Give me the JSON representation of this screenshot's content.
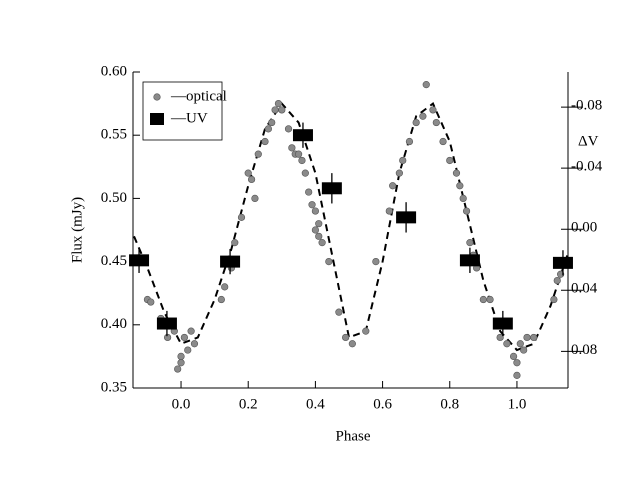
{
  "chart_data": {
    "type": "scatter",
    "xlabel": "Phase",
    "ylabel": "Flux (mJy)",
    "y2label": "ΔV",
    "xlim": [
      -0.143,
      1.152
    ],
    "ylim": [
      0.35,
      0.6
    ],
    "y2lim": [
      0.104,
      -0.103
    ],
    "xticks": [
      {
        "value": 0,
        "label": "0.0"
      },
      0.2,
      0.4,
      0.6,
      0.8,
      {
        "value": 1,
        "label": "1.0"
      }
    ],
    "yticks": [
      0.35,
      {
        "value": 0.4,
        "label": "0.40"
      },
      0.45,
      {
        "value": 0.5,
        "label": "0.50"
      },
      0.55,
      {
        "value": 0.6,
        "label": "0.60"
      }
    ],
    "y2ticks": [
      -0.08,
      -0.04,
      {
        "value": 0,
        "label": "0.00"
      },
      0.04,
      0.08
    ],
    "legend": "upper left",
    "series": [
      {
        "name": "—optical",
        "marker": "circle",
        "color": "#8a8a8a",
        "x": [
          -0.1,
          -0.09,
          -0.06,
          -0.04,
          -0.02,
          0.0,
          0.0,
          -0.01,
          0.02,
          0.03,
          0.01,
          0.04,
          0.12,
          0.13,
          0.15,
          0.16,
          0.18,
          0.2,
          0.21,
          0.22,
          0.23,
          0.25,
          0.26,
          0.27,
          0.28,
          0.29,
          0.3,
          0.32,
          0.33,
          0.34,
          0.35,
          0.36,
          0.37,
          0.38,
          0.39,
          0.4,
          0.41,
          0.4,
          0.41,
          0.42,
          0.44,
          0.47,
          0.49,
          0.51,
          0.55,
          0.58,
          0.62,
          0.63,
          0.65,
          0.66,
          0.68,
          0.7,
          0.72,
          0.73,
          0.75,
          0.76,
          0.78,
          0.8,
          0.82,
          0.83,
          0.84,
          0.85,
          0.86,
          0.87,
          0.88,
          0.9,
          0.92,
          0.94,
          0.95,
          0.97,
          0.99,
          1.0,
          1.0,
          1.01,
          1.02,
          1.03,
          1.05,
          1.11,
          1.12,
          1.13
        ],
        "values": [
          0.42,
          0.418,
          0.405,
          0.39,
          0.395,
          0.375,
          0.37,
          0.365,
          0.38,
          0.395,
          0.39,
          0.385,
          0.42,
          0.43,
          0.445,
          0.465,
          0.485,
          0.52,
          0.515,
          0.5,
          0.535,
          0.545,
          0.555,
          0.56,
          0.57,
          0.575,
          0.57,
          0.555,
          0.54,
          0.535,
          0.535,
          0.53,
          0.52,
          0.505,
          0.495,
          0.49,
          0.48,
          0.475,
          0.47,
          0.465,
          0.45,
          0.41,
          0.39,
          0.385,
          0.395,
          0.45,
          0.49,
          0.51,
          0.52,
          0.53,
          0.545,
          0.56,
          0.565,
          0.59,
          0.57,
          0.56,
          0.545,
          0.53,
          0.52,
          0.51,
          0.5,
          0.49,
          0.465,
          0.455,
          0.445,
          0.42,
          0.42,
          0.4,
          0.39,
          0.385,
          0.375,
          0.37,
          0.36,
          0.385,
          0.38,
          0.39,
          0.39,
          0.42,
          0.435,
          0.44
        ]
      },
      {
        "name": "—UV",
        "marker": "square",
        "color": "#000000",
        "x": [
          -0.125,
          -0.042,
          0.146,
          0.363,
          0.449,
          0.67,
          0.86,
          0.958,
          1.137
        ],
        "values": [
          0.451,
          0.401,
          0.45,
          0.55,
          0.508,
          0.485,
          0.451,
          0.401,
          0.449
        ],
        "errors": [
          0.01,
          0.01,
          0.01,
          0.01,
          0.012,
          0.012,
          0.01,
          0.01,
          0.01
        ]
      },
      {
        "marker": "dashed-line",
        "color": "#000000",
        "x": [
          -0.14,
          -0.1,
          -0.05,
          0,
          0.05,
          0.1,
          0.15,
          0.2,
          0.25,
          0.3,
          0.35,
          0.4,
          0.45,
          0.5,
          0.55,
          0.6,
          0.65,
          0.7,
          0.75,
          0.8,
          0.85,
          0.9,
          0.95,
          1.0,
          1.05,
          1.1,
          1.15
        ],
        "values": [
          0.47,
          0.445,
          0.41,
          0.385,
          0.39,
          0.42,
          0.46,
          0.51,
          0.555,
          0.575,
          0.56,
          0.52,
          0.455,
          0.39,
          0.395,
          0.45,
          0.52,
          0.565,
          0.575,
          0.545,
          0.49,
          0.435,
          0.395,
          0.38,
          0.385,
          0.415,
          0.455
        ]
      }
    ]
  }
}
